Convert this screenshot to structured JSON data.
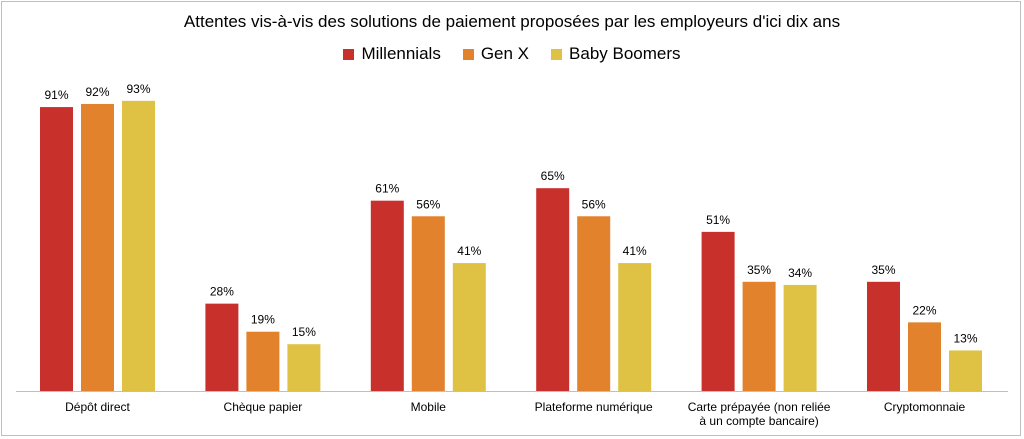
{
  "chart_data": {
    "type": "bar",
    "title": "Attentes vis-à-vis des solutions de paiement proposées par les employeurs d'ici dix ans",
    "categories": [
      [
        "Dépôt direct"
      ],
      [
        "Chèque papier"
      ],
      [
        "Mobile"
      ],
      [
        "Plateforme numérique"
      ],
      [
        "Carte prépayée (non reliée",
        "à un compte bancaire)"
      ],
      [
        "Cryptomonnaie"
      ]
    ],
    "series": [
      {
        "name": "Millennials",
        "color": "#c8302c",
        "values": [
          91,
          28,
          61,
          65,
          51,
          35
        ]
      },
      {
        "name": "Gen X",
        "color": "#e2822c",
        "values": [
          92,
          19,
          56,
          56,
          35,
          22
        ]
      },
      {
        "name": "Baby Boomers",
        "color": "#dfc244",
        "values": [
          93,
          15,
          41,
          41,
          34,
          13
        ]
      }
    ],
    "ylim": [
      0,
      100
    ],
    "value_suffix": "%",
    "grid": false,
    "legend_position": "top-center"
  }
}
